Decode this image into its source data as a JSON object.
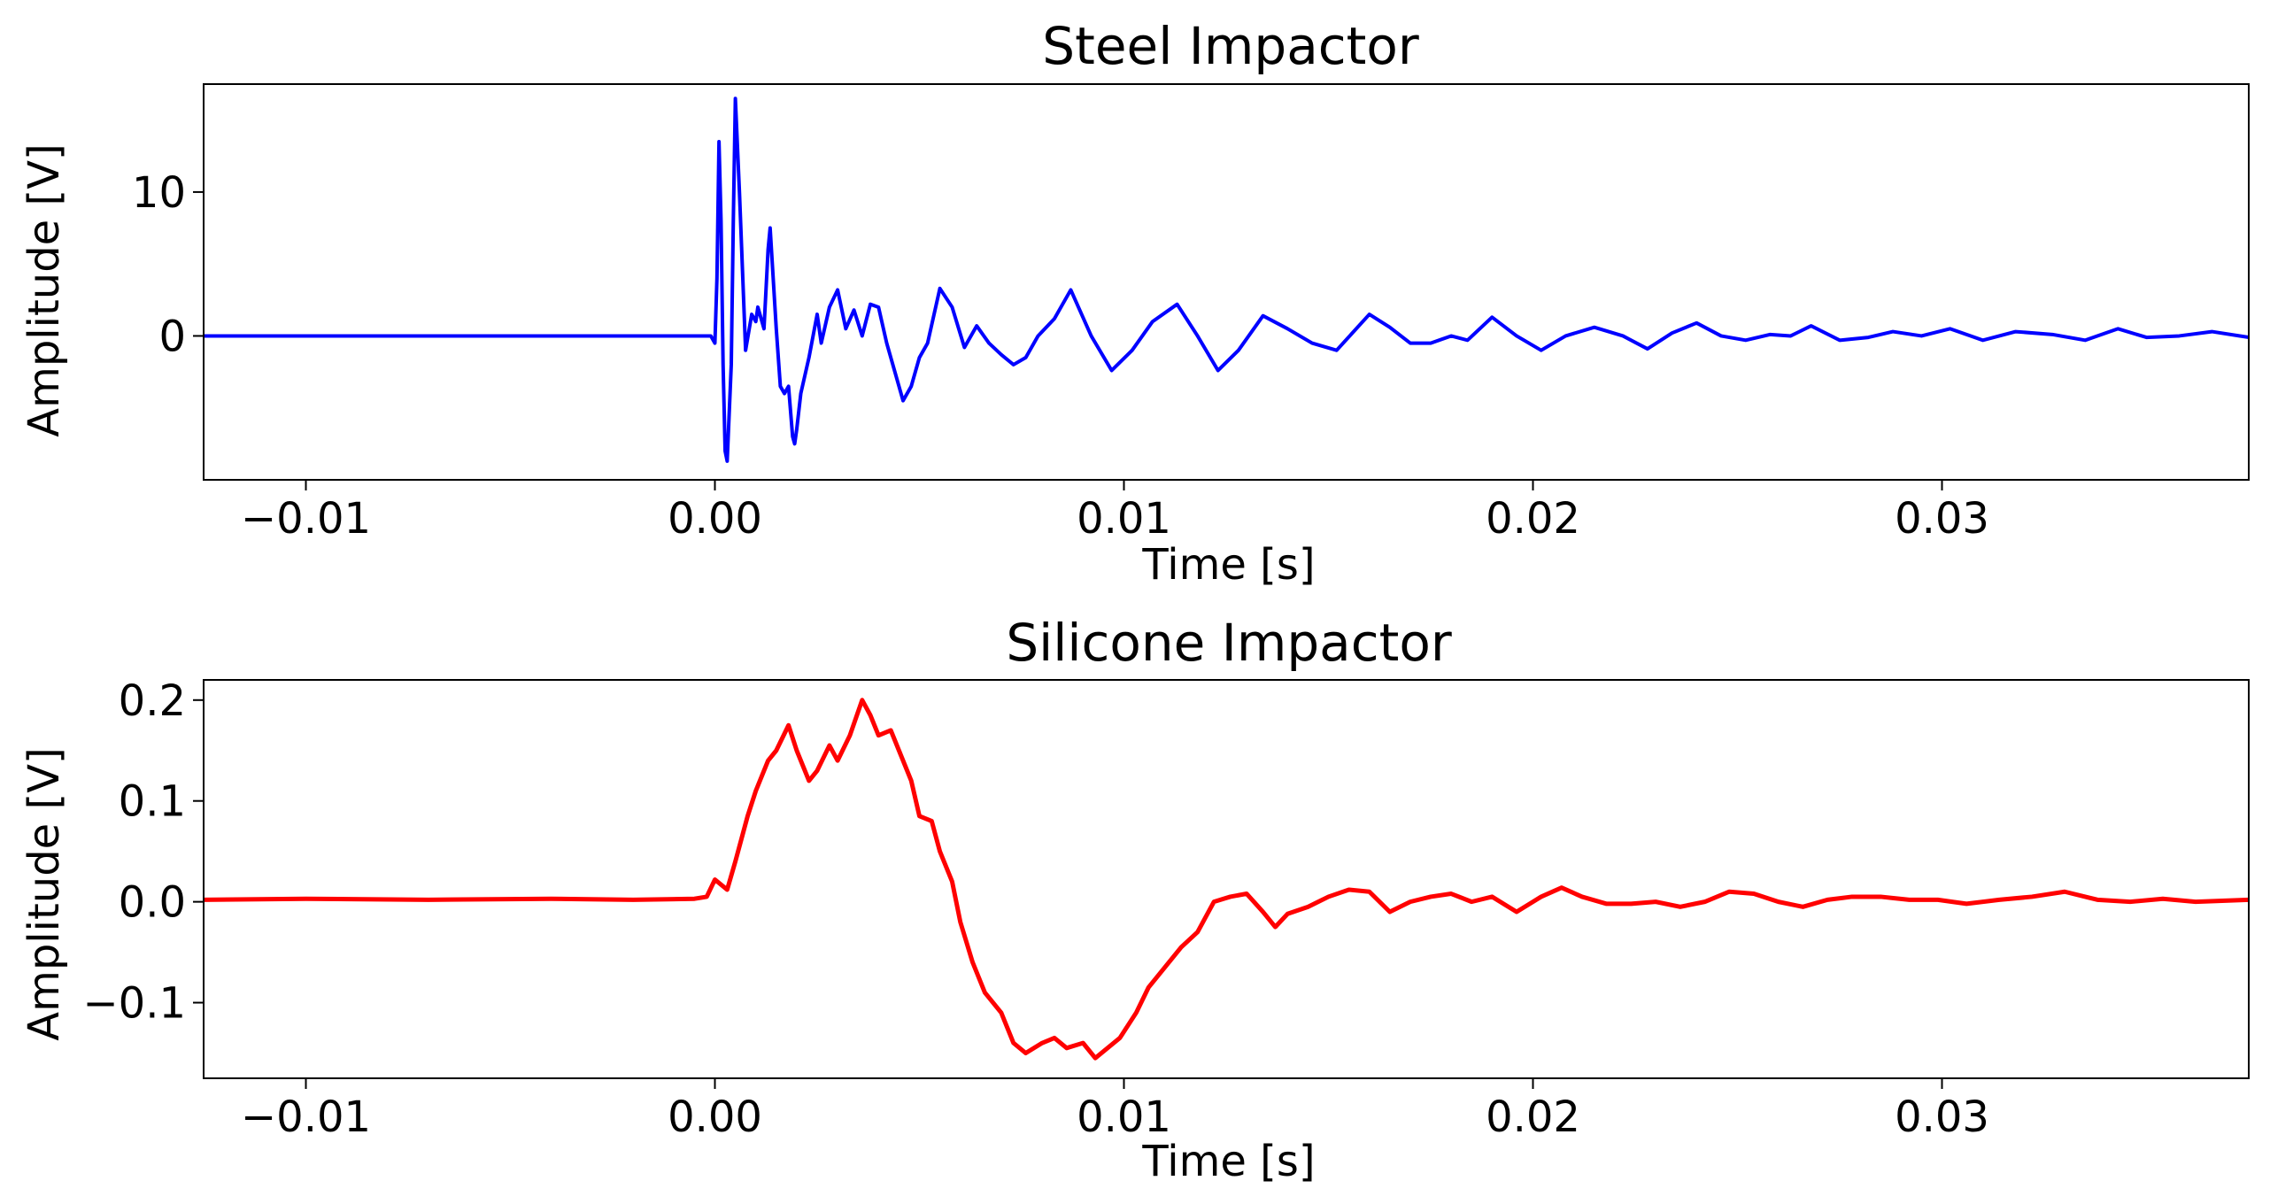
{
  "chart_data": [
    {
      "type": "line",
      "title": "Steel Impactor",
      "xlabel": "Time [s]",
      "ylabel": "Amplitude [V]",
      "xlim": [
        -0.0125,
        0.0375
      ],
      "ylim": [
        -10,
        17.5
      ],
      "xticks": [
        -0.01,
        0.0,
        0.01,
        0.02,
        0.03
      ],
      "xtick_labels": [
        "−0.01",
        "0.00",
        "0.01",
        "0.02",
        "0.03"
      ],
      "yticks": [
        0,
        10
      ],
      "ytick_labels": [
        "0",
        "10"
      ],
      "grid": false,
      "color": "#0000ff",
      "series": [
        {
          "name": "Steel Impactor",
          "x": [
            -0.0125,
            -0.005,
            -0.0001,
            0.0,
            5e-05,
            0.0001,
            0.00015,
            0.0002,
            0.00025,
            0.0003,
            0.0004,
            0.00045,
            0.0005,
            0.0006,
            0.00075,
            0.0009,
            0.001,
            0.00105,
            0.0012,
            0.0013,
            0.00135,
            0.0015,
            0.0016,
            0.0017,
            0.0018,
            0.0019,
            0.00195,
            0.002,
            0.0021,
            0.0023,
            0.0025,
            0.0026,
            0.0028,
            0.003,
            0.0032,
            0.0034,
            0.0036,
            0.0038,
            0.004,
            0.0042,
            0.0044,
            0.0046,
            0.0048,
            0.005,
            0.0052,
            0.0055,
            0.0058,
            0.0061,
            0.0064,
            0.0067,
            0.007,
            0.0073,
            0.0076,
            0.0079,
            0.0083,
            0.0087,
            0.0092,
            0.0097,
            0.0102,
            0.0107,
            0.0113,
            0.0118,
            0.0123,
            0.0128,
            0.0134,
            0.014,
            0.0146,
            0.0152,
            0.016,
            0.0165,
            0.017,
            0.0175,
            0.018,
            0.0184,
            0.019,
            0.0196,
            0.0202,
            0.0208,
            0.0215,
            0.0222,
            0.0228,
            0.0234,
            0.024,
            0.0246,
            0.0252,
            0.0258,
            0.0263,
            0.0268,
            0.0275,
            0.0282,
            0.0288,
            0.0295,
            0.0302,
            0.031,
            0.0318,
            0.0327,
            0.0335,
            0.0343,
            0.035,
            0.0358,
            0.0366,
            0.0375
          ],
          "y": [
            0.0,
            0.0,
            0.0,
            -0.5,
            4.0,
            13.5,
            8.0,
            -2.0,
            -8.0,
            -8.7,
            -2.0,
            8.0,
            16.5,
            10.0,
            -1.0,
            1.5,
            1.0,
            2.0,
            0.5,
            6.0,
            7.5,
            0.5,
            -3.5,
            -4.0,
            -3.5,
            -7.0,
            -7.5,
            -6.5,
            -4.0,
            -1.5,
            1.5,
            -0.5,
            2.0,
            3.2,
            0.5,
            1.8,
            0.0,
            2.2,
            2.0,
            -0.5,
            -2.5,
            -4.5,
            -3.5,
            -1.5,
            -0.5,
            3.3,
            2.0,
            -0.8,
            0.7,
            -0.5,
            -1.3,
            -2.0,
            -1.5,
            0.0,
            1.2,
            3.2,
            0.0,
            -2.4,
            -1.0,
            1.0,
            2.2,
            0.0,
            -2.4,
            -1.0,
            1.4,
            0.5,
            -0.5,
            -1.0,
            1.5,
            0.6,
            -0.5,
            -0.5,
            0.0,
            -0.3,
            1.3,
            0.0,
            -1.0,
            0.0,
            0.6,
            0.0,
            -0.9,
            0.2,
            0.9,
            0.0,
            -0.3,
            0.1,
            0.0,
            0.7,
            -0.3,
            -0.1,
            0.3,
            0.0,
            0.5,
            -0.3,
            0.3,
            0.1,
            -0.3,
            0.5,
            -0.1,
            0.0,
            0.3,
            -0.1
          ]
        }
      ]
    },
    {
      "type": "line",
      "title": "Silicone Impactor",
      "xlabel": "Time [s]",
      "ylabel": "Amplitude [V]",
      "xlim": [
        -0.0125,
        0.0375
      ],
      "ylim": [
        -0.175,
        0.22
      ],
      "xticks": [
        -0.01,
        0.0,
        0.01,
        0.02,
        0.03
      ],
      "xtick_labels": [
        "−0.01",
        "0.00",
        "0.01",
        "0.02",
        "0.03"
      ],
      "yticks": [
        -0.1,
        0.0,
        0.1,
        0.2
      ],
      "ytick_labels": [
        "−0.1",
        "0.0",
        "0.1",
        "0.2"
      ],
      "grid": false,
      "color": "#ff0000",
      "series": [
        {
          "name": "Silicone Impactor",
          "x": [
            -0.0125,
            -0.01,
            -0.007,
            -0.004,
            -0.002,
            -0.0005,
            -0.0002,
            0.0,
            0.0003,
            0.0005,
            0.0008,
            0.001,
            0.0013,
            0.0015,
            0.0018,
            0.002,
            0.0023,
            0.0025,
            0.0028,
            0.003,
            0.0033,
            0.0036,
            0.0038,
            0.004,
            0.0043,
            0.0045,
            0.0048,
            0.005,
            0.0053,
            0.0055,
            0.0058,
            0.006,
            0.0063,
            0.0066,
            0.007,
            0.0073,
            0.0076,
            0.008,
            0.0083,
            0.0086,
            0.009,
            0.0093,
            0.0096,
            0.0099,
            0.0103,
            0.0106,
            0.011,
            0.0114,
            0.0118,
            0.0122,
            0.0126,
            0.013,
            0.0134,
            0.0137,
            0.014,
            0.0145,
            0.015,
            0.0155,
            0.016,
            0.0165,
            0.017,
            0.0175,
            0.018,
            0.0185,
            0.019,
            0.0196,
            0.0202,
            0.0207,
            0.0212,
            0.0218,
            0.0224,
            0.023,
            0.0236,
            0.0242,
            0.0248,
            0.0254,
            0.026,
            0.0266,
            0.0272,
            0.0278,
            0.0285,
            0.0292,
            0.0299,
            0.0306,
            0.0314,
            0.0322,
            0.033,
            0.0338,
            0.0346,
            0.0354,
            0.0362,
            0.0375
          ],
          "y": [
            0.002,
            0.003,
            0.002,
            0.003,
            0.002,
            0.003,
            0.005,
            0.022,
            0.012,
            0.04,
            0.085,
            0.11,
            0.14,
            0.15,
            0.175,
            0.15,
            0.12,
            0.13,
            0.155,
            0.14,
            0.165,
            0.2,
            0.185,
            0.165,
            0.17,
            0.15,
            0.12,
            0.085,
            0.08,
            0.05,
            0.02,
            -0.02,
            -0.06,
            -0.09,
            -0.11,
            -0.14,
            -0.15,
            -0.14,
            -0.135,
            -0.145,
            -0.14,
            -0.155,
            -0.145,
            -0.135,
            -0.11,
            -0.085,
            -0.065,
            -0.045,
            -0.03,
            0.0,
            0.005,
            0.008,
            -0.01,
            -0.025,
            -0.012,
            -0.005,
            0.005,
            0.012,
            0.01,
            -0.01,
            0.0,
            0.005,
            0.008,
            0.0,
            0.005,
            -0.01,
            0.005,
            0.014,
            0.005,
            -0.002,
            -0.002,
            0.0,
            -0.005,
            0.0,
            0.01,
            0.008,
            0.0,
            -0.005,
            0.002,
            0.005,
            0.005,
            0.002,
            0.002,
            -0.002,
            0.002,
            0.005,
            0.01,
            0.002,
            0.0,
            0.003,
            0.0,
            0.002
          ]
        }
      ]
    }
  ]
}
